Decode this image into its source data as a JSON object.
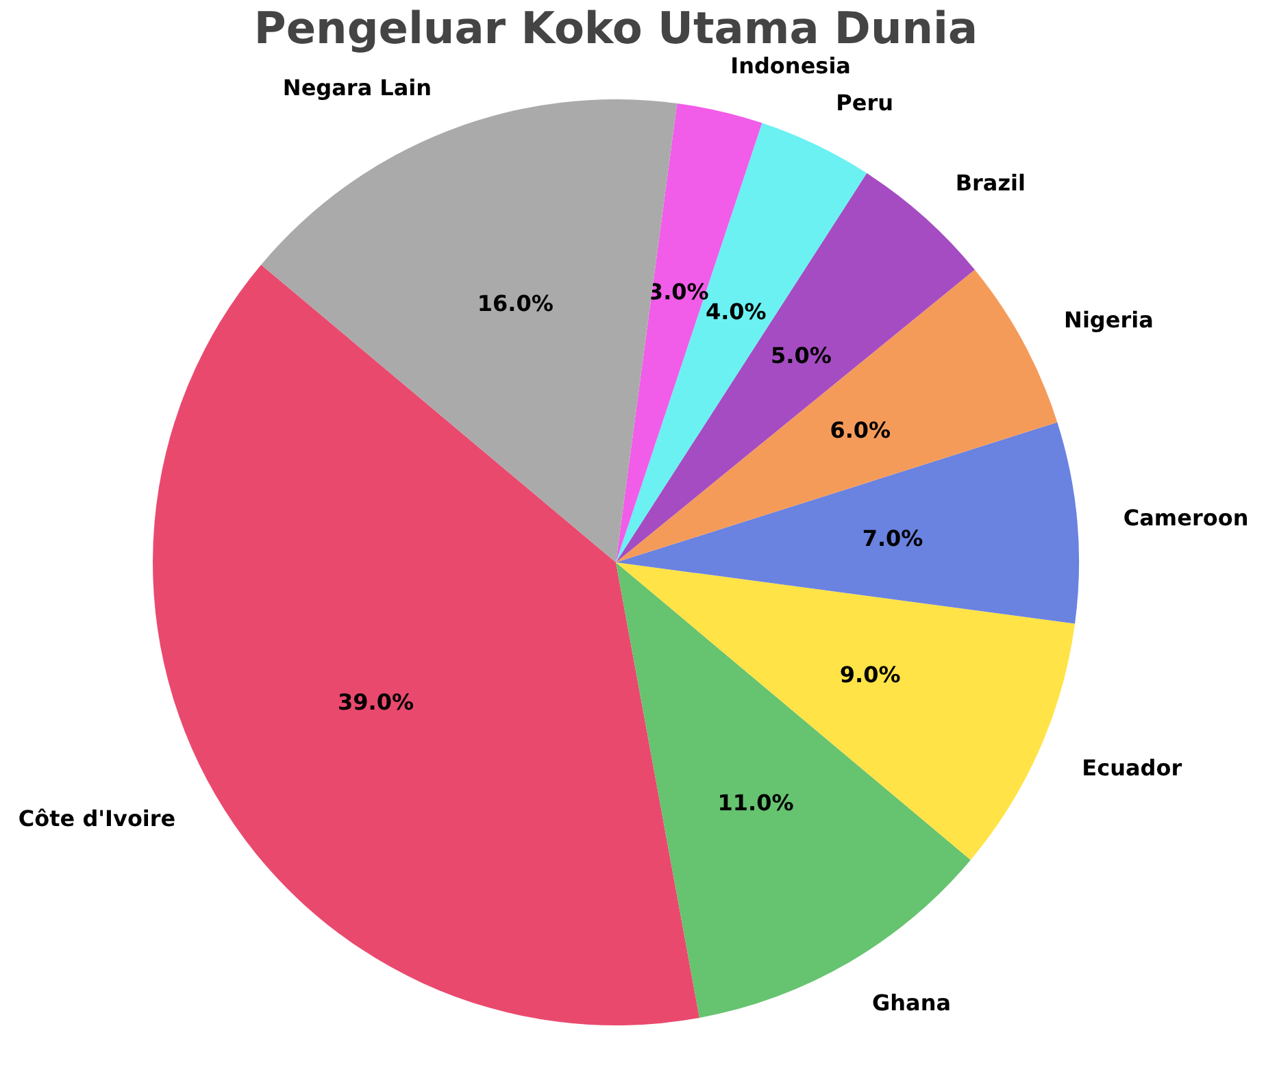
{
  "chart_data": {
    "type": "pie",
    "title": "Pengeluar Koko Utama Dunia",
    "categories": [
      "Côte d'Ivoire",
      "Ghana",
      "Ecuador",
      "Cameroon",
      "Nigeria",
      "Brazil",
      "Peru",
      "Indonesia",
      "Negara Lain"
    ],
    "values": [
      39,
      11,
      9,
      7,
      6,
      5,
      4,
      3,
      16
    ],
    "colors": [
      "#ea496e",
      "#66c36f",
      "#ffe347",
      "#6a82e0",
      "#f59b5a",
      "#a54cc2",
      "#6bf1f1",
      "#f15ce9",
      "#aaaaaa"
    ],
    "value_labels": [
      "39.0%",
      "11.0%",
      "9.0%",
      "7.0%",
      "6.0%",
      "5.0%",
      "4.0%",
      "3.0%",
      "16.0%"
    ]
  }
}
